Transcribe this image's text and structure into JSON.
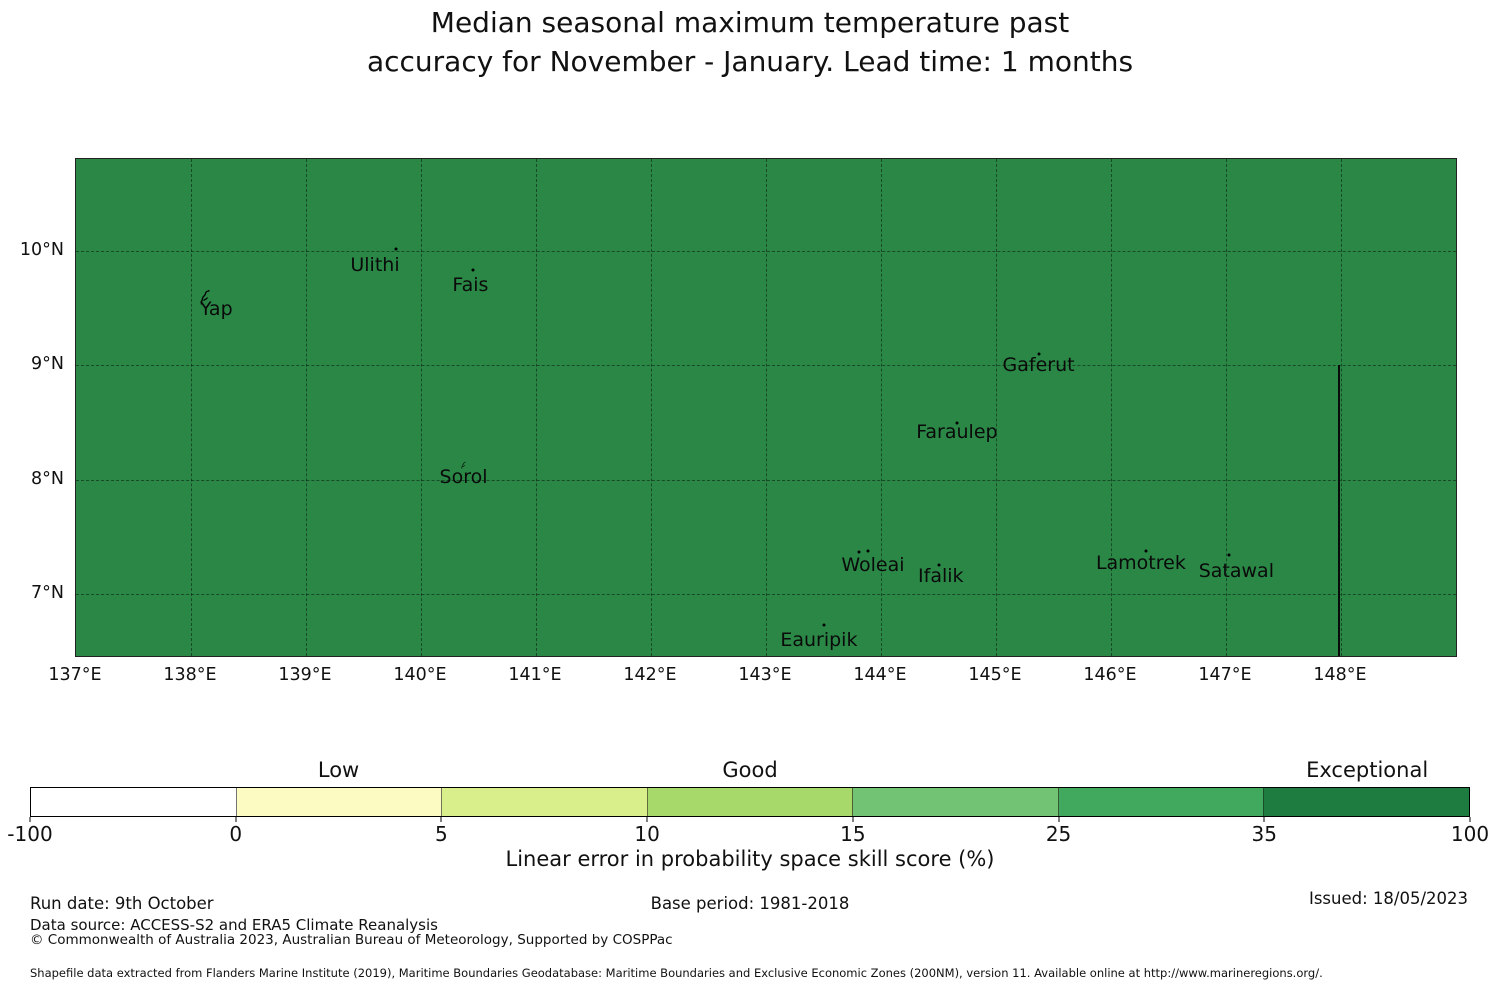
{
  "title_line1": "Median seasonal maximum temperature past",
  "title_line2": "accuracy for November - January. Lead time: 1 months",
  "chart_data": {
    "type": "heatmap",
    "subtype": "filled-geographic-map",
    "title": "Median seasonal maximum temperature past accuracy for November - January. Lead time: 1 months",
    "map_region_fill_color": "#2a8746",
    "map_region_skill_category": "Exceptional (35-100)",
    "lon_range": [
      137.0,
      149.0
    ],
    "lat_range": [
      6.458,
      10.805
    ],
    "grid": true,
    "x_ticks": [
      {
        "value": 137,
        "label": "137°E"
      },
      {
        "value": 138,
        "label": "138°E"
      },
      {
        "value": 139,
        "label": "139°E"
      },
      {
        "value": 140,
        "label": "140°E"
      },
      {
        "value": 141,
        "label": "141°E"
      },
      {
        "value": 142,
        "label": "142°E"
      },
      {
        "value": 143,
        "label": "143°E"
      },
      {
        "value": 144,
        "label": "144°E"
      },
      {
        "value": 145,
        "label": "145°E"
      },
      {
        "value": 146,
        "label": "146°E"
      },
      {
        "value": 147,
        "label": "147°E"
      },
      {
        "value": 148,
        "label": "148°E"
      }
    ],
    "y_ticks": [
      {
        "value": 10,
        "label": "10°N"
      },
      {
        "value": 9,
        "label": "9°N"
      },
      {
        "value": 8,
        "label": "8°N"
      },
      {
        "value": 7,
        "label": "7°N"
      }
    ],
    "islands": [
      {
        "name": "Yap",
        "label_lon": 138.22,
        "label_lat": 9.49,
        "markers": [
          {
            "kind": "islet",
            "lon": 138.13,
            "lat": 9.57,
            "w": 13,
            "h": 17
          }
        ]
      },
      {
        "name": "Ulithi",
        "label_lon": 139.6,
        "label_lat": 9.88,
        "markers": [
          {
            "kind": "dot",
            "lon": 139.78,
            "lat": 10.02
          }
        ]
      },
      {
        "name": "Fais",
        "label_lon": 140.43,
        "label_lat": 9.7,
        "markers": [
          {
            "kind": "dot",
            "lon": 140.45,
            "lat": 9.83
          }
        ]
      },
      {
        "name": "Sorol",
        "label_lon": 140.37,
        "label_lat": 8.02,
        "markers": [
          {
            "kind": "islet",
            "lon": 140.37,
            "lat": 8.14,
            "w": 8,
            "h": 8
          }
        ]
      },
      {
        "name": "Gaferut",
        "label_lon": 145.37,
        "label_lat": 9.0,
        "markers": [
          {
            "kind": "dot",
            "lon": 145.37,
            "lat": 9.1
          }
        ]
      },
      {
        "name": "Faraulep",
        "label_lon": 144.66,
        "label_lat": 8.42,
        "markers": [
          {
            "kind": "dot",
            "lon": 144.66,
            "lat": 8.5
          }
        ]
      },
      {
        "name": "Woleai",
        "label_lon": 143.93,
        "label_lat": 7.25,
        "markers": [
          {
            "kind": "dot",
            "lon": 143.81,
            "lat": 7.37
          },
          {
            "kind": "dot",
            "lon": 143.89,
            "lat": 7.38
          }
        ]
      },
      {
        "name": "Ifalik",
        "label_lon": 144.52,
        "label_lat": 7.16,
        "markers": [
          {
            "kind": "dot",
            "lon": 144.5,
            "lat": 7.25
          }
        ]
      },
      {
        "name": "Eauripik",
        "label_lon": 143.46,
        "label_lat": 6.6,
        "markers": [
          {
            "kind": "dot",
            "lon": 143.5,
            "lat": 6.73
          }
        ]
      },
      {
        "name": "Lamotrek",
        "label_lon": 146.26,
        "label_lat": 7.27,
        "markers": [
          {
            "kind": "dot",
            "lon": 146.3,
            "lat": 7.38
          }
        ]
      },
      {
        "name": "Satawal",
        "label_lon": 147.09,
        "label_lat": 7.2,
        "markers": [
          {
            "kind": "dot",
            "lon": 147.03,
            "lat": 7.34
          }
        ]
      }
    ],
    "boundary_line": {
      "lon": 147.98,
      "lat_top": 9.0,
      "lat_bottom": 6.458
    },
    "colorbar": {
      "boundaries": [
        -100,
        0,
        5,
        10,
        15,
        25,
        35,
        100
      ],
      "tick_labels": [
        "-100",
        "0",
        "5",
        "10",
        "15",
        "25",
        "35",
        "100"
      ],
      "segment_colors": [
        "#ffffff",
        "#fcfcc2",
        "#d9ef8b",
        "#a6d96a",
        "#73c374",
        "#41a95e",
        "#1e7c41"
      ],
      "categories": [
        {
          "label": "Low",
          "segment_index": 1
        },
        {
          "label": "Good",
          "segment_index": 3
        },
        {
          "label": "Exceptional",
          "segment_index": 6
        }
      ],
      "xlabel": "Linear error in probability space skill score (%)"
    }
  },
  "footer": {
    "run_date": "Run date: 9th October",
    "base_period": "Base period: 1981-2018",
    "issued": "Issued: 18/05/2023",
    "data_source": "Data source: ACCESS-S2 and ERA5 Climate Reanalysis",
    "copyright": "© Commonwealth of Australia 2023, Australian Bureau of Meteorology, Supported by COSPPac",
    "shapefile_note": "Shapefile data extracted from Flanders Marine Institute (2019), Maritime Boundaries Geodatabase: Maritime Boundaries and Exclusive Economic Zones (200NM), version 11. Available online at http://www.marineregions.org/."
  }
}
